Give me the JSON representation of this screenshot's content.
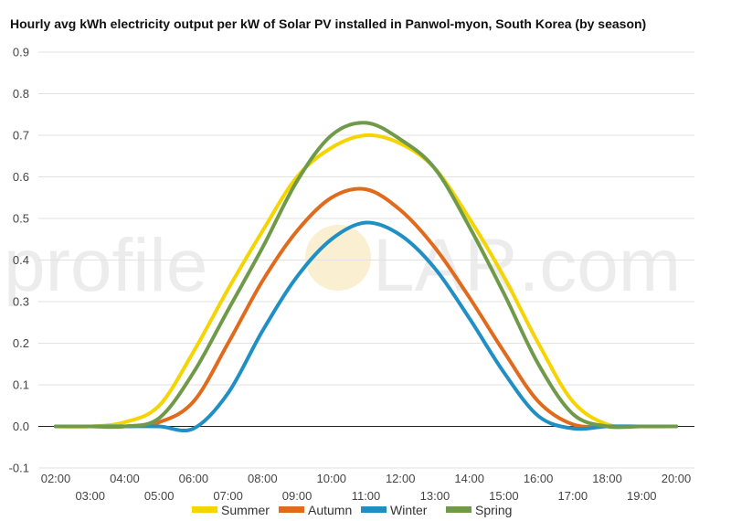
{
  "watermark": {
    "left": "profile",
    "right": "LAR.com"
  },
  "chart_data": {
    "type": "line",
    "title": "Hourly avg kWh electricity output per kW of Solar PV installed in Panwol-myon, South Korea (by season)",
    "xlabel": "",
    "ylabel": "",
    "ylim": [
      -0.1,
      0.9
    ],
    "yticks": [
      "0.9",
      "0.8",
      "0.7",
      "0.6",
      "0.5",
      "0.4",
      "0.3",
      "0.2",
      "0.1",
      "0.0",
      "-0.1"
    ],
    "x": [
      "02:00",
      "03:00",
      "04:00",
      "05:00",
      "06:00",
      "07:00",
      "08:00",
      "09:00",
      "10:00",
      "11:00",
      "12:00",
      "13:00",
      "14:00",
      "15:00",
      "16:00",
      "17:00",
      "18:00",
      "19:00",
      "20:00"
    ],
    "grid": true,
    "legend": "bottom",
    "series": [
      {
        "name": "Summer",
        "color": "#f5d400",
        "values": [
          0,
          0,
          0.01,
          0.05,
          0.18,
          0.33,
          0.47,
          0.6,
          0.67,
          0.7,
          0.68,
          0.62,
          0.5,
          0.36,
          0.2,
          0.06,
          0.005,
          0,
          0
        ]
      },
      {
        "name": "Autumn",
        "color": "#e06b1d",
        "values": [
          0,
          0,
          0,
          0.01,
          0.06,
          0.2,
          0.35,
          0.47,
          0.55,
          0.57,
          0.52,
          0.43,
          0.31,
          0.18,
          0.06,
          0.005,
          0,
          0,
          0
        ]
      },
      {
        "name": "Winter",
        "color": "#1f8fc4",
        "values": [
          0,
          0,
          0,
          0,
          -0.005,
          0.08,
          0.23,
          0.36,
          0.45,
          0.49,
          0.46,
          0.38,
          0.26,
          0.13,
          0.025,
          -0.005,
          0,
          0,
          0
        ]
      },
      {
        "name": "Spring",
        "color": "#6f9a4a",
        "values": [
          0,
          0,
          0,
          0.02,
          0.13,
          0.28,
          0.43,
          0.59,
          0.7,
          0.73,
          0.69,
          0.62,
          0.48,
          0.32,
          0.15,
          0.03,
          0,
          0,
          0
        ]
      }
    ]
  }
}
